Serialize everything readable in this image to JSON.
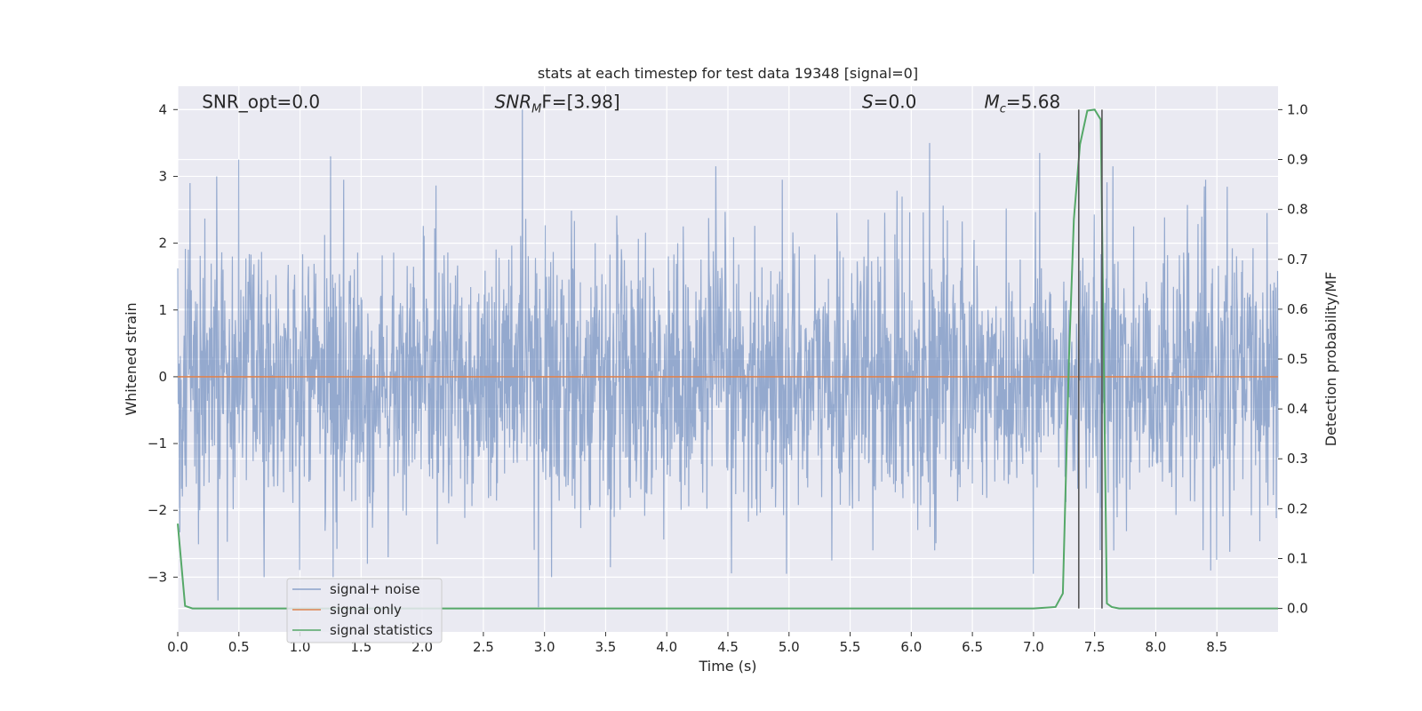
{
  "chart_data": {
    "type": "line",
    "title": "stats at each timestep for test data 19348 [signal=0]",
    "xlabel": "Time (s)",
    "ylabel": "Whitened strain",
    "y2label": "Detection probability/MF",
    "xlim": [
      0.0,
      9.0
    ],
    "ylim": [
      -3.82,
      4.35
    ],
    "y2lim": [
      -0.047,
      1.047
    ],
    "x_ticks": [
      "0.0",
      "0.5",
      "1.0",
      "1.5",
      "2.0",
      "2.5",
      "3.0",
      "3.5",
      "4.0",
      "4.5",
      "5.0",
      "5.5",
      "6.0",
      "6.5",
      "7.0",
      "7.5",
      "8.0",
      "8.5"
    ],
    "y_ticks": [
      "4",
      "3",
      "2",
      "1",
      "0",
      "−1",
      "−2",
      "−3"
    ],
    "y_tick_values": [
      4,
      3,
      2,
      1,
      0,
      -1,
      -2,
      -3
    ],
    "y2_ticks": [
      "1.0",
      "0.9",
      "0.8",
      "0.7",
      "0.6",
      "0.5",
      "0.4",
      "0.3",
      "0.2",
      "0.1",
      "0.0"
    ],
    "y2_tick_values": [
      1.0,
      0.9,
      0.8,
      0.7,
      0.6,
      0.5,
      0.4,
      0.3,
      0.2,
      0.1,
      0.0
    ],
    "grid": true,
    "legend_position": "lower-left",
    "annotations": {
      "snr_opt": "SNR_opt=0.0",
      "snr_mf_sym": "SNR",
      "snr_mf_sub": "M",
      "snr_mf_rest": "F=[3.98]",
      "s_sym": "S",
      "s_rest": "=0.0",
      "mc_sym": "M",
      "mc_sub": "c",
      "mc_rest": "=5.68"
    },
    "vertical_lines_x": [
      7.37,
      7.56
    ],
    "series": [
      {
        "name": "signal+ noise",
        "color": "#4c72b0",
        "axis": "left",
        "style": "noise band, approx. std 1.0, peaks from about -3.45 to 4.0",
        "x_range": [
          0.0,
          9.0
        ],
        "spikes": [
          {
            "x": 0.1,
            "y": 2.9
          },
          {
            "x": 0.32,
            "y": 3.0
          },
          {
            "x": 0.5,
            "y": 3.25
          },
          {
            "x": 1.25,
            "y": 3.3
          },
          {
            "x": 2.82,
            "y": 4.0
          },
          {
            "x": 4.4,
            "y": 3.15
          },
          {
            "x": 6.15,
            "y": 3.5
          },
          {
            "x": 7.05,
            "y": 3.35
          },
          {
            "x": 7.65,
            "y": 3.15
          },
          {
            "x": 0.33,
            "y": -3.35
          },
          {
            "x": 1.55,
            "y": -2.8
          },
          {
            "x": 2.95,
            "y": -3.45
          },
          {
            "x": 4.98,
            "y": -2.95
          },
          {
            "x": 5.35,
            "y": -2.75
          },
          {
            "x": 7.0,
            "y": -2.95
          },
          {
            "x": 8.45,
            "y": -2.9
          }
        ]
      },
      {
        "name": "signal only",
        "color": "#dd8452",
        "axis": "left",
        "x": [
          0.0,
          9.0
        ],
        "y": [
          0.0,
          0.0
        ]
      },
      {
        "name": "signal statistics",
        "color": "#55a868",
        "axis": "right",
        "x": [
          0.0,
          0.06,
          0.12,
          0.5,
          1.0,
          2.0,
          3.0,
          4.0,
          5.0,
          6.0,
          7.0,
          7.18,
          7.24,
          7.29,
          7.33,
          7.38,
          7.44,
          7.5,
          7.55,
          7.6,
          7.64,
          7.7,
          8.0,
          9.0
        ],
        "y": [
          0.17,
          0.005,
          0.0,
          0.0,
          0.0,
          0.0,
          0.0,
          0.0,
          0.0,
          0.0,
          0.0,
          0.003,
          0.03,
          0.5,
          0.78,
          0.93,
          0.998,
          1.0,
          0.98,
          0.01,
          0.003,
          0.0,
          0.0,
          0.0
        ]
      }
    ]
  }
}
